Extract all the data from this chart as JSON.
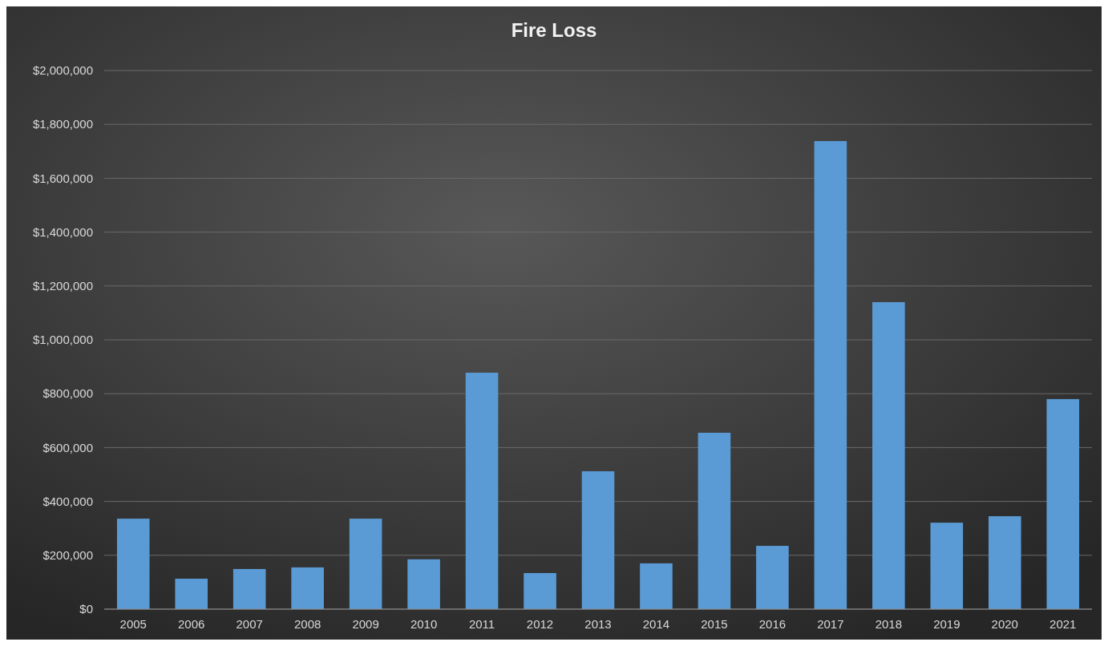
{
  "chart_data": {
    "type": "bar",
    "title": "Fire Loss",
    "categories": [
      "2005",
      "2006",
      "2007",
      "2008",
      "2009",
      "2010",
      "2011",
      "2012",
      "2013",
      "2014",
      "2015",
      "2016",
      "2017",
      "2018",
      "2019",
      "2020",
      "2021"
    ],
    "values": [
      336000,
      113000,
      149000,
      155000,
      336000,
      185000,
      878000,
      134000,
      512000,
      170000,
      655000,
      235000,
      1738000,
      1140000,
      321000,
      345000,
      780000
    ],
    "color": "#5b9bd5",
    "ylim": [
      0,
      2000000
    ],
    "yticks": [
      {
        "value": 0,
        "label": "$0"
      },
      {
        "value": 200000,
        "label": "$200,000"
      },
      {
        "value": 400000,
        "label": "$400,000"
      },
      {
        "value": 600000,
        "label": "$600,000"
      },
      {
        "value": 800000,
        "label": "$800,000"
      },
      {
        "value": 1000000,
        "label": "$1,000,000"
      },
      {
        "value": 1200000,
        "label": "$1,200,000"
      },
      {
        "value": 1400000,
        "label": "$1,400,000"
      },
      {
        "value": 1600000,
        "label": "$1,600,000"
      },
      {
        "value": 1800000,
        "label": "$1,800,000"
      },
      {
        "value": 2000000,
        "label": "$2,000,000"
      }
    ],
    "grid": "y"
  }
}
